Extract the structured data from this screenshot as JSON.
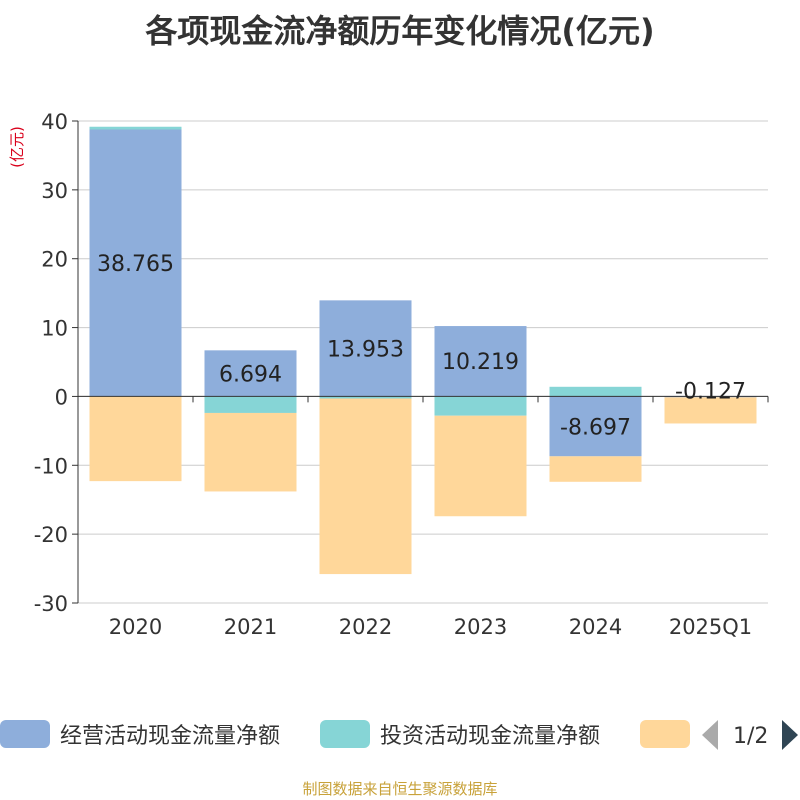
{
  "title": "各项现金流净额历年变化情况(亿元)",
  "footer": "制图数据来自恒生聚源数据库",
  "legend": {
    "items": [
      {
        "label": "经营活动现金流量净额",
        "color": "#8eaedb"
      },
      {
        "label": "投资活动现金流量净额",
        "color": "#86d5d6"
      },
      {
        "label": "",
        "color": "#ffd79a"
      }
    ],
    "page": "1/2"
  },
  "chart_data": {
    "type": "bar",
    "stacked": true,
    "ylabel": "(亿元)",
    "ylim": [
      -30,
      40
    ],
    "yticks": [
      40,
      30,
      20,
      10,
      0,
      -10,
      -20,
      -30
    ],
    "categories": [
      "2020",
      "2021",
      "2022",
      "2023",
      "2024",
      "2025Q1"
    ],
    "grid": true,
    "legend_position": "bottom",
    "series": [
      {
        "name": "经营活动现金流量净额",
        "color": "#8eaedb",
        "values": [
          38.765,
          6.694,
          13.953,
          10.219,
          -8.697,
          -0.127
        ]
      },
      {
        "name": "投资活动现金流量净额",
        "color": "#86d5d6",
        "values": [
          0.4,
          -2.4,
          -0.3,
          -2.8,
          1.4,
          0.0
        ]
      },
      {
        "color": "#ffd79a",
        "values": [
          -12.3,
          -11.4,
          -25.5,
          -14.6,
          -3.7,
          -3.8
        ]
      }
    ],
    "data_labels": [
      "38.765",
      "6.694",
      "13.953",
      "10.219",
      "-8.697",
      "-0.127"
    ]
  }
}
